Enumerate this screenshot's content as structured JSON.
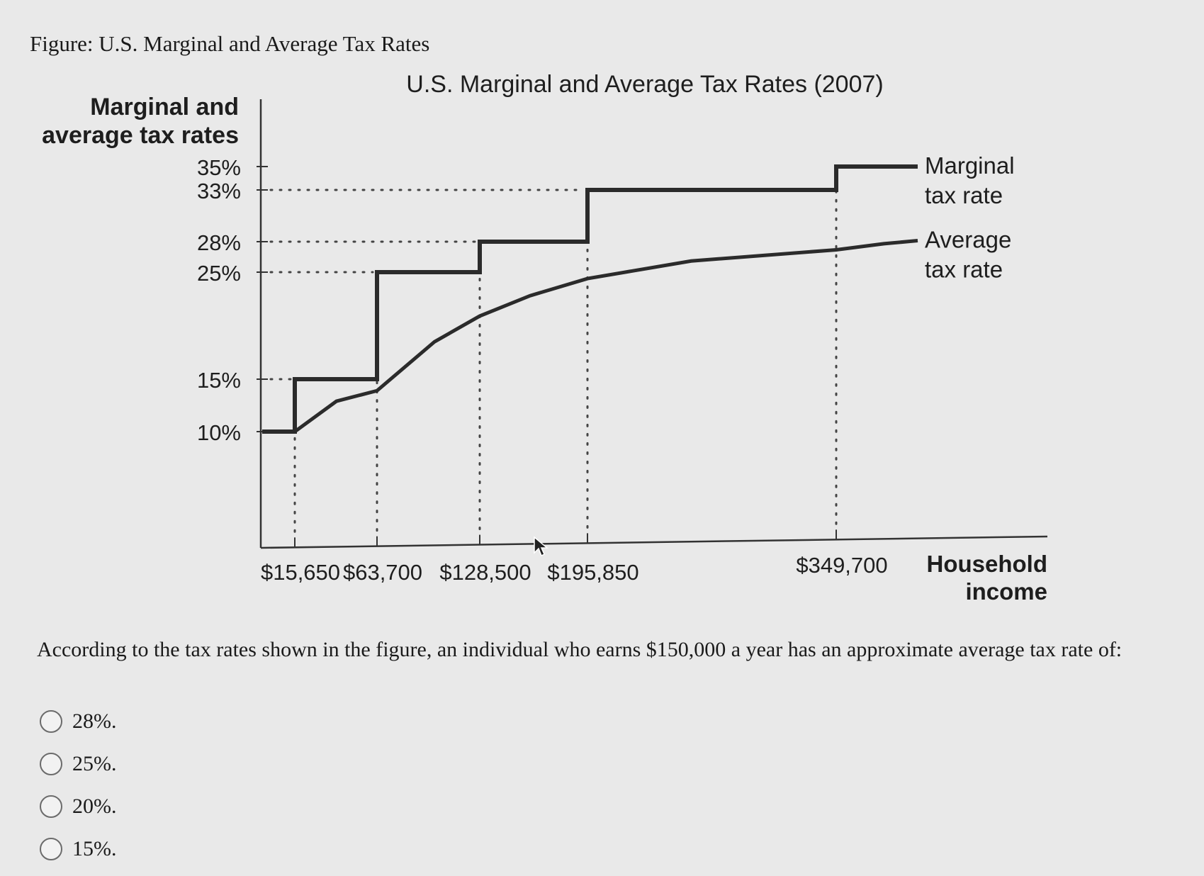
{
  "caption": "Figure: U.S. Marginal and Average Tax Rates",
  "question": {
    "text": "According to the tax rates shown in the figure, an individual who earns $150,000 a year has an approximate average tax rate of:",
    "options": [
      "28%.",
      "25%.",
      "20%.",
      "15%."
    ]
  },
  "chart_data": {
    "type": "line",
    "title": "U.S. Marginal and Average Tax Rates (2007)",
    "ylabel": "Marginal and average tax rates",
    "xlabel": "Household income",
    "y_ticks": [
      "35%",
      "33%",
      "28%",
      "25%",
      "15%",
      "10%"
    ],
    "y_tick_values": [
      35,
      33,
      28,
      25,
      15,
      10
    ],
    "x_ticks": [
      "$15,650",
      "$63,700",
      "$128,500",
      "$195,850",
      "$349,700"
    ],
    "x_tick_values": [
      15650,
      63700,
      128500,
      195850,
      349700
    ],
    "xlim": [
      0,
      470000
    ],
    "series": [
      {
        "name": "Marginal tax rate",
        "label_lines": [
          "Marginal",
          "tax rate"
        ],
        "step": true,
        "x": [
          0,
          15650,
          63700,
          128500,
          195850,
          349700,
          470000
        ],
        "y": [
          10,
          15,
          25,
          28,
          33,
          35,
          35
        ]
      },
      {
        "name": "Average tax rate",
        "label_lines": [
          "Average",
          "tax rate"
        ],
        "step": false,
        "x": [
          15650,
          40000,
          63700,
          100000,
          128500,
          160000,
          195850,
          260000,
          349700,
          420000,
          470000
        ],
        "y": [
          10,
          12.9,
          13.9,
          18.5,
          20.9,
          22.8,
          24.4,
          26.1,
          27.2,
          27.8,
          28.1
        ]
      }
    ],
    "colors": {
      "line": "#2b2b2b",
      "guide": "#444444"
    }
  }
}
